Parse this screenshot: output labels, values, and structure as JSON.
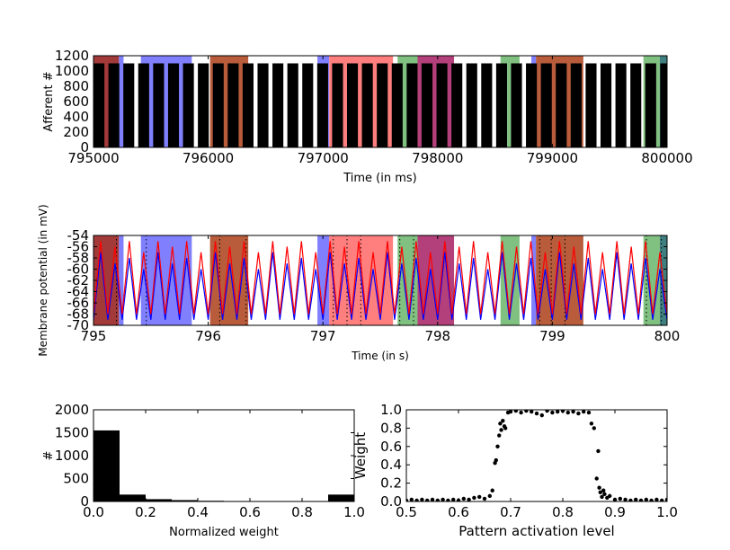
{
  "chart_data": [
    {
      "type": "raster",
      "xlabel": "Time (in ms)",
      "ylabel": "Afferent #",
      "xlim": [
        795000,
        800000
      ],
      "xticks": [
        795000,
        796000,
        797000,
        798000,
        799000,
        800000
      ],
      "ylim": [
        0,
        1200
      ],
      "yticks": [
        0,
        200,
        400,
        600,
        800,
        1000,
        1200
      ],
      "afferents": 1100,
      "bands": [
        {
          "start": 795000,
          "end": 795222,
          "color": "#a33a3a"
        },
        {
          "start": 795222,
          "end": 795262,
          "color": "#8080ff"
        },
        {
          "start": 795413,
          "end": 795857,
          "color": "#8080ff"
        },
        {
          "start": 796016,
          "end": 796349,
          "color": "#b85c3c"
        },
        {
          "start": 796952,
          "end": 797055,
          "color": "#8080ff"
        },
        {
          "start": 797055,
          "end": 797611,
          "color": "#ff7f7f"
        },
        {
          "start": 797651,
          "end": 797825,
          "color": "#80c080"
        },
        {
          "start": 797825,
          "end": 798143,
          "color": "#b3407a"
        },
        {
          "start": 798548,
          "end": 798714,
          "color": "#80c080"
        },
        {
          "start": 798817,
          "end": 798857,
          "color": "#8080ff"
        },
        {
          "start": 798857,
          "end": 799270,
          "color": "#b85c3c"
        },
        {
          "start": 799794,
          "end": 799937,
          "color": "#80c080"
        },
        {
          "start": 799937,
          "end": 800000,
          "color": "#3f7f7f"
        }
      ],
      "bursts": [
        [
          795000,
          795095
        ],
        [
          795130,
          795225
        ],
        [
          795260,
          795355
        ],
        [
          795390,
          795485
        ],
        [
          795520,
          795615
        ],
        [
          795650,
          795745
        ],
        [
          795780,
          795875
        ],
        [
          795910,
          796005
        ],
        [
          796040,
          796135
        ],
        [
          796170,
          796265
        ],
        [
          796300,
          796395
        ],
        [
          796430,
          796525
        ],
        [
          796560,
          796655
        ],
        [
          796690,
          796785
        ],
        [
          796820,
          796915
        ],
        [
          796950,
          797045
        ],
        [
          797080,
          797175
        ],
        [
          797210,
          797305
        ],
        [
          797340,
          797435
        ],
        [
          797470,
          797565
        ],
        [
          797600,
          797695
        ],
        [
          797730,
          797825
        ],
        [
          797860,
          797955
        ],
        [
          797990,
          798085
        ],
        [
          798120,
          798215
        ],
        [
          798250,
          798345
        ],
        [
          798380,
          798475
        ],
        [
          798510,
          798605
        ],
        [
          798640,
          798735
        ],
        [
          798770,
          798865
        ],
        [
          798900,
          798995
        ],
        [
          799030,
          799125
        ],
        [
          799160,
          799255
        ],
        [
          799290,
          799385
        ],
        [
          799420,
          799515
        ],
        [
          799550,
          799645
        ],
        [
          799680,
          799775
        ],
        [
          799810,
          799905
        ],
        [
          799940,
          800000
        ]
      ]
    },
    {
      "type": "line",
      "xlabel": "Time (in s)",
      "ylabel": "Membrane potential (in mV)",
      "xlim": [
        795,
        800
      ],
      "xticks": [
        795,
        796,
        797,
        798,
        799,
        800
      ],
      "ylim": [
        -70,
        -54
      ],
      "yticks": [
        -70,
        -68,
        -66,
        -64,
        -62,
        -60,
        -58,
        -56,
        -54
      ],
      "threshold": -54,
      "spikes": [
        795.2,
        795.46,
        796.1,
        796.33,
        797.09,
        797.21,
        797.33,
        797.67,
        797.79,
        798.89,
        798.99,
        799.11,
        799.82,
        799.95
      ],
      "bands": [
        {
          "start": 795.0,
          "end": 795.222,
          "color": "#a33a3a"
        },
        {
          "start": 795.222,
          "end": 795.262,
          "color": "#8080ff"
        },
        {
          "start": 795.413,
          "end": 795.857,
          "color": "#8080ff"
        },
        {
          "start": 796.016,
          "end": 796.349,
          "color": "#b85c3c"
        },
        {
          "start": 796.952,
          "end": 797.055,
          "color": "#8080ff"
        },
        {
          "start": 797.055,
          "end": 797.611,
          "color": "#ff7f7f"
        },
        {
          "start": 797.651,
          "end": 797.825,
          "color": "#80c080"
        },
        {
          "start": 797.825,
          "end": 798.143,
          "color": "#b3407a"
        },
        {
          "start": 798.548,
          "end": 798.714,
          "color": "#80c080"
        },
        {
          "start": 798.817,
          "end": 798.857,
          "color": "#8080ff"
        },
        {
          "start": 798.857,
          "end": 799.27,
          "color": "#b85c3c"
        },
        {
          "start": 799.794,
          "end": 799.937,
          "color": "#80c080"
        },
        {
          "start": 799.937,
          "end": 800.0,
          "color": "#3f7f7f"
        }
      ],
      "x": [
        795,
        795.0625,
        795.125,
        795.1875,
        795.25,
        795.3125,
        795.375,
        795.4375,
        795.5,
        795.5625,
        795.625,
        795.6875,
        795.75,
        795.8125,
        795.875,
        795.9375,
        796,
        796.0625,
        796.125,
        796.1875,
        796.25,
        796.3125,
        796.375,
        796.4375,
        796.5,
        796.5625,
        796.625,
        796.6875,
        796.75,
        796.8125,
        796.875,
        796.9375,
        797,
        797.0625,
        797.125,
        797.1875,
        797.25,
        797.3125,
        797.375,
        797.4375,
        797.5,
        797.5625,
        797.625,
        797.6875,
        797.75,
        797.8125,
        797.875,
        797.9375,
        798,
        798.0625,
        798.125,
        798.1875,
        798.25,
        798.3125,
        798.375,
        798.4375,
        798.5,
        798.5625,
        798.625,
        798.6875,
        798.75,
        798.8125,
        798.875,
        798.9375,
        799,
        799.0625,
        799.125,
        799.1875,
        799.25,
        799.3125,
        799.375,
        799.4375,
        799.5,
        799.5625,
        799.625,
        799.6875,
        799.75,
        799.8125,
        799.875,
        799.9375,
        800
      ],
      "series": [
        {
          "color": "#0000ff",
          "values": [
            -69,
            -57,
            -69,
            -59,
            -69,
            -58,
            -69,
            -60,
            -69,
            -57,
            -69,
            -59,
            -69,
            -58,
            -69,
            -60,
            -69,
            -57,
            -69,
            -59,
            -69,
            -58,
            -69,
            -60,
            -69,
            -57,
            -69,
            -59,
            -69,
            -58,
            -69,
            -60,
            -69,
            -57,
            -69,
            -59,
            -69,
            -58,
            -69,
            -60,
            -69,
            -57,
            -69,
            -59,
            -69,
            -58,
            -69,
            -60,
            -69,
            -57,
            -69,
            -59,
            -69,
            -58,
            -69,
            -60,
            -69,
            -57,
            -69,
            -59,
            -69,
            -58,
            -69,
            -60,
            -69,
            -57,
            -69,
            -59,
            -69,
            -58,
            -69,
            -60,
            -69,
            -57,
            -69,
            -59,
            -69,
            -58,
            -69,
            -60,
            -69
          ]
        },
        {
          "color": "#ff0000",
          "values": [
            -68,
            -55,
            -68,
            -56,
            -68,
            -55,
            -68,
            -57,
            -68,
            -55,
            -68,
            -56,
            -68,
            -55,
            -68,
            -57,
            -68,
            -55,
            -68,
            -56,
            -68,
            -55,
            -68,
            -57,
            -68,
            -55,
            -68,
            -56,
            -68,
            -55,
            -68,
            -57,
            -68,
            -55,
            -68,
            -56,
            -68,
            -55,
            -68,
            -57,
            -68,
            -55,
            -68,
            -56,
            -68,
            -55,
            -68,
            -57,
            -68,
            -55,
            -68,
            -56,
            -68,
            -55,
            -68,
            -57,
            -68,
            -55,
            -68,
            -56,
            -68,
            -55,
            -68,
            -57,
            -68,
            -55,
            -68,
            -56,
            -68,
            -55,
            -68,
            -57,
            -68,
            -55,
            -68,
            -56,
            -68,
            -55,
            -68,
            -57,
            -68
          ]
        }
      ]
    },
    {
      "type": "histogram",
      "xlabel": "Normalized weight",
      "ylabel": "#",
      "color": "#000000",
      "xlim": [
        0,
        1
      ],
      "xticks": [
        {
          "value": 0,
          "label": "0.0"
        },
        0.2,
        0.4,
        0.6,
        0.8,
        {
          "value": 1,
          "label": "1.0"
        }
      ],
      "ylim": [
        0,
        2000
      ],
      "yticks": [
        0,
        500,
        1000,
        1500,
        2000
      ],
      "bins": [
        0,
        0.1,
        0.2,
        0.3,
        0.4,
        0.5,
        0.6,
        0.7,
        0.8,
        0.9,
        1.0
      ],
      "values": [
        1550,
        150,
        50,
        30,
        15,
        10,
        10,
        10,
        10,
        150
      ]
    },
    {
      "type": "scatter",
      "xlabel": "Pattern activation level",
      "ylabel": "Weight",
      "color": "#000000",
      "xlim": [
        0.5,
        1
      ],
      "xticks": [
        0.5,
        0.6,
        0.7,
        0.8,
        0.9,
        {
          "value": 1,
          "label": "1.0"
        }
      ],
      "ylim": [
        0,
        1
      ],
      "yticks": [
        {
          "value": 0,
          "label": "0.0"
        },
        0.2,
        0.4,
        0.6,
        0.8,
        {
          "value": 1,
          "label": "1.0"
        }
      ],
      "x": [
        0.5,
        0.51,
        0.52,
        0.53,
        0.54,
        0.55,
        0.56,
        0.57,
        0.58,
        0.59,
        0.6,
        0.61,
        0.62,
        0.63,
        0.64,
        0.65,
        0.66,
        0.665,
        0.67,
        0.672,
        0.675,
        0.678,
        0.68,
        0.682,
        0.685,
        0.688,
        0.69,
        0.695,
        0.7,
        0.71,
        0.72,
        0.73,
        0.74,
        0.75,
        0.76,
        0.77,
        0.78,
        0.79,
        0.8,
        0.81,
        0.82,
        0.83,
        0.84,
        0.85,
        0.855,
        0.86,
        0.865,
        0.868,
        0.87,
        0.872,
        0.875,
        0.878,
        0.88,
        0.885,
        0.89,
        0.9,
        0.91,
        0.92,
        0.93,
        0.94,
        0.95,
        0.96,
        0.97,
        0.98,
        0.99,
        1.0
      ],
      "values": [
        0.01,
        0.02,
        0.01,
        0.02,
        0.01,
        0.02,
        0.01,
        0.02,
        0.01,
        0.02,
        0.01,
        0.03,
        0.02,
        0.04,
        0.05,
        0.03,
        0.06,
        0.12,
        0.42,
        0.45,
        0.6,
        0.72,
        0.85,
        0.78,
        0.88,
        0.82,
        0.8,
        0.97,
        0.98,
        0.99,
        0.97,
        0.99,
        0.98,
        0.96,
        0.94,
        0.99,
        0.97,
        0.98,
        0.99,
        0.97,
        0.98,
        0.96,
        0.98,
        0.97,
        0.85,
        0.8,
        0.25,
        0.55,
        0.15,
        0.1,
        0.05,
        0.12,
        0.08,
        0.04,
        0.06,
        0.02,
        0.03,
        0.02,
        0.01,
        0.02,
        0.01,
        0.02,
        0.01,
        0.02,
        0.01,
        0.02
      ]
    }
  ]
}
